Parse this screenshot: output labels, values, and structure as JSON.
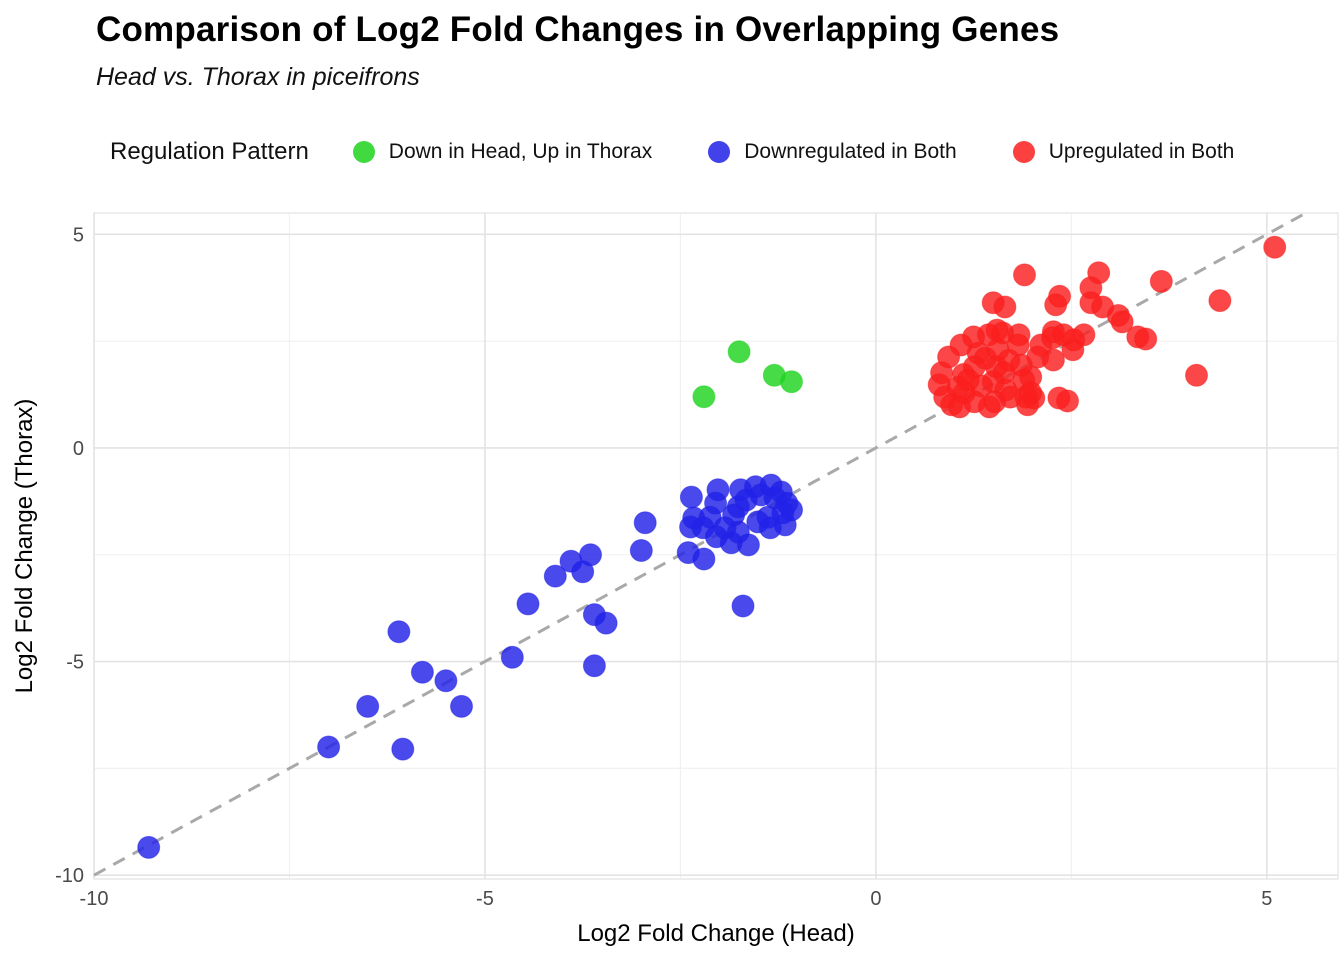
{
  "header": {
    "title": "Comparison of Log2 Fold Changes in Overlapping Genes",
    "subtitle": "Head vs. Thorax in piceifrons"
  },
  "legend": {
    "title": "Regulation Pattern",
    "items": [
      {
        "label": "Down in Head, Up in Thorax",
        "color": "#1ed31e"
      },
      {
        "label": "Downregulated in Both",
        "color": "#2121e8"
      },
      {
        "label": "Upregulated in Both",
        "color": "#fa1e1e"
      }
    ]
  },
  "chart_data": {
    "type": "scatter",
    "title": "Comparison of Log2 Fold Changes in Overlapping Genes",
    "subtitle": "Head vs. Thorax in piceifrons",
    "xlabel": "Log2 Fold Change (Head)",
    "ylabel": "Log2 Fold Change (Thorax)",
    "xlim": [
      -10.0,
      5.91
    ],
    "ylim": [
      -10.09,
      5.5
    ],
    "x_ticks": [
      -10,
      -5,
      0,
      5
    ],
    "y_ticks": [
      5,
      0,
      -5,
      -10
    ],
    "x_minor_ticks": [
      -7.5,
      -2.5,
      2.5
    ],
    "y_minor_ticks": [
      2.5,
      -2.5,
      -7.5
    ],
    "grid": true,
    "legend_position": "top",
    "identity_line": {
      "slope": 1,
      "intercept": 0,
      "style": "dashed",
      "color": "#a9a9a9"
    },
    "point_radius": 11,
    "point_opacity": 0.82,
    "series": [
      {
        "name": "Down in Head, Up in Thorax",
        "color": "#1ed31e",
        "points": [
          [
            -2.2,
            1.2
          ],
          [
            -1.75,
            2.25
          ],
          [
            -1.3,
            1.7
          ],
          [
            -1.08,
            1.55
          ]
        ]
      },
      {
        "name": "Downregulated in Both",
        "color": "#2121e8",
        "points": [
          [
            -9.3,
            -9.35
          ],
          [
            -7.0,
            -7.0
          ],
          [
            -6.05,
            -7.05
          ],
          [
            -6.5,
            -6.05
          ],
          [
            -6.1,
            -4.3
          ],
          [
            -5.8,
            -5.25
          ],
          [
            -5.5,
            -5.45
          ],
          [
            -5.3,
            -6.05
          ],
          [
            -4.65,
            -4.9
          ],
          [
            -4.45,
            -3.65
          ],
          [
            -4.1,
            -3.0
          ],
          [
            -3.9,
            -2.65
          ],
          [
            -3.75,
            -2.9
          ],
          [
            -3.65,
            -2.5
          ],
          [
            -3.6,
            -3.9
          ],
          [
            -3.45,
            -4.1
          ],
          [
            -3.6,
            -5.1
          ],
          [
            -3.0,
            -2.4
          ],
          [
            -2.95,
            -1.75
          ],
          [
            -2.4,
            -2.45
          ],
          [
            -2.2,
            -2.6
          ],
          [
            -1.7,
            -3.7
          ],
          [
            -2.36,
            -1.15
          ],
          [
            -2.33,
            -1.64
          ],
          [
            -2.37,
            -1.85
          ],
          [
            -2.21,
            -1.87
          ],
          [
            -2.12,
            -1.62
          ],
          [
            -2.05,
            -1.29
          ],
          [
            -2.02,
            -0.98
          ],
          [
            -2.04,
            -2.08
          ],
          [
            -1.93,
            -1.87
          ],
          [
            -1.85,
            -2.22
          ],
          [
            -1.82,
            -1.57
          ],
          [
            -1.76,
            -1.38
          ],
          [
            -1.76,
            -1.97
          ],
          [
            -1.73,
            -0.98
          ],
          [
            -1.66,
            -1.22
          ],
          [
            -1.63,
            -2.27
          ],
          [
            -1.54,
            -0.91
          ],
          [
            -1.51,
            -1.73
          ],
          [
            -1.47,
            -1.1
          ],
          [
            -1.38,
            -1.62
          ],
          [
            -1.35,
            -1.87
          ],
          [
            -1.34,
            -0.87
          ],
          [
            -1.29,
            -1.17
          ],
          [
            -1.21,
            -1.03
          ],
          [
            -1.19,
            -1.52
          ],
          [
            -1.16,
            -1.8
          ],
          [
            -1.14,
            -1.29
          ],
          [
            -1.08,
            -1.45
          ]
        ]
      },
      {
        "name": "Upregulated in Both",
        "color": "#fa1e1e",
        "points": [
          [
            5.1,
            4.7
          ],
          [
            4.4,
            3.45
          ],
          [
            4.1,
            1.7
          ],
          [
            3.65,
            3.9
          ],
          [
            3.35,
            2.6
          ],
          [
            3.45,
            2.55
          ],
          [
            3.1,
            3.1
          ],
          [
            3.15,
            2.95
          ],
          [
            2.85,
            4.1
          ],
          [
            2.75,
            3.75
          ],
          [
            2.75,
            3.4
          ],
          [
            2.9,
            3.3
          ],
          [
            2.3,
            3.35
          ],
          [
            2.35,
            3.55
          ],
          [
            1.9,
            4.05
          ],
          [
            1.65,
            3.3
          ],
          [
            1.5,
            3.4
          ],
          [
            1.62,
            2.69
          ],
          [
            1.55,
            2.76
          ],
          [
            2.27,
            2.72
          ],
          [
            2.4,
            2.65
          ],
          [
            2.66,
            2.65
          ],
          [
            2.52,
            2.3
          ],
          [
            2.53,
            2.53
          ],
          [
            2.45,
            1.1
          ],
          [
            2.34,
            1.17
          ],
          [
            2.02,
            1.17
          ],
          [
            1.94,
            1.01
          ],
          [
            0.93,
            2.13
          ],
          [
            0.84,
            1.76
          ],
          [
            0.81,
            1.48
          ],
          [
            0.88,
            1.19
          ],
          [
            0.97,
            1.01
          ],
          [
            1.09,
            2.41
          ],
          [
            1.25,
            2.6
          ],
          [
            1.44,
            2.65
          ],
          [
            1.31,
            2.22
          ],
          [
            1.26,
            1.9
          ],
          [
            1.18,
            1.59
          ],
          [
            1.13,
            1.29
          ],
          [
            1.26,
            1.08
          ],
          [
            1.45,
            0.96
          ],
          [
            1.56,
            2.3
          ],
          [
            1.54,
            1.9
          ],
          [
            1.5,
            1.55
          ],
          [
            1.64,
            1.76
          ],
          [
            1.66,
            1.36
          ],
          [
            1.82,
            2.41
          ],
          [
            1.83,
            2.65
          ],
          [
            1.86,
            1.94
          ],
          [
            1.89,
            1.59
          ],
          [
            1.98,
            1.29
          ],
          [
            1.92,
            1.19
          ],
          [
            2.07,
            2.13
          ],
          [
            2.11,
            2.41
          ],
          [
            2.26,
            2.58
          ],
          [
            2.27,
            2.06
          ],
          [
            1.98,
            1.66
          ],
          [
            1.07,
            0.96
          ],
          [
            1.72,
            1.19
          ],
          [
            1.52,
            1.08
          ],
          [
            1.35,
            1.45
          ],
          [
            1.12,
            1.72
          ],
          [
            1.4,
            2.1
          ],
          [
            1.7,
            2.05
          ],
          [
            1.05,
            1.42
          ]
        ]
      }
    ],
    "colors": {
      "grid_major": "#e3e3e3",
      "grid_minor": "#f0f0f0",
      "tick_label": "#4a4a4a",
      "axis_title": "#000000",
      "panel_border": "#e3e3e3"
    }
  }
}
